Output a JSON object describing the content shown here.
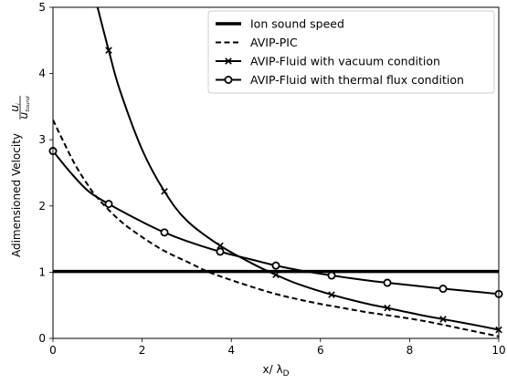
{
  "chart_data": {
    "type": "line",
    "title": "",
    "xlabel": "x/ λ",
    "xlabel_sub": "D",
    "ylabel": "Adimensioned Velocity",
    "ylabel_frac_num": "u",
    "ylabel_frac_num_sub": "i",
    "ylabel_frac_den": "u",
    "ylabel_frac_den_sub": "Sound",
    "xlim": [
      0,
      10
    ],
    "ylim": [
      0,
      5
    ],
    "xticks": [
      "0",
      "2",
      "4",
      "6",
      "8",
      "10"
    ],
    "yticks": [
      "0",
      "1",
      "2",
      "3",
      "4",
      "5"
    ],
    "grid": false,
    "legend_position": "top-right",
    "series": [
      {
        "name": "Ion sound speed",
        "style": "thick-solid",
        "x": [
          0,
          10
        ],
        "y": [
          1.01,
          1.01
        ]
      },
      {
        "name": "AVIP-PIC",
        "style": "dashed",
        "x": [
          0,
          0.25,
          0.5,
          0.75,
          1,
          1.5,
          2,
          2.5,
          3,
          3.5,
          4,
          4.5,
          5,
          5.5,
          6,
          6.5,
          7,
          7.5,
          8,
          8.5,
          9,
          9.5,
          10
        ],
        "y": [
          3.3,
          2.95,
          2.62,
          2.35,
          2.12,
          1.78,
          1.53,
          1.32,
          1.16,
          1.0,
          0.88,
          0.77,
          0.67,
          0.59,
          0.52,
          0.46,
          0.4,
          0.35,
          0.3,
          0.24,
          0.17,
          0.1,
          0.03
        ]
      },
      {
        "name": "AVIP-Fluid with vacuum condition",
        "style": "solid-x",
        "x": [
          1,
          1.25,
          1.5,
          2,
          2.5,
          3,
          3.75,
          4.5,
          5,
          5.5,
          6.25,
          7,
          7.5,
          8.2,
          8.75,
          9.4,
          10
        ],
        "y": [
          5.0,
          4.35,
          3.75,
          2.85,
          2.22,
          1.78,
          1.4,
          1.12,
          0.96,
          0.82,
          0.66,
          0.53,
          0.46,
          0.36,
          0.29,
          0.21,
          0.13
        ],
        "marker_indices": [
          1,
          4,
          6,
          8,
          10,
          12,
          14,
          16
        ]
      },
      {
        "name": "AVIP-Fluid with thermal flux condition",
        "style": "solid-o",
        "x": [
          0,
          0.4,
          0.8,
          1.25,
          2,
          2.5,
          3,
          3.75,
          4.4,
          5,
          5.6,
          6.25,
          7,
          7.5,
          8.2,
          8.75,
          9.4,
          10
        ],
        "y": [
          2.83,
          2.5,
          2.22,
          2.03,
          1.76,
          1.6,
          1.47,
          1.31,
          1.2,
          1.1,
          1.02,
          0.95,
          0.88,
          0.84,
          0.79,
          0.75,
          0.71,
          0.67
        ],
        "marker_indices": [
          0,
          3,
          5,
          7,
          9,
          11,
          13,
          15,
          17
        ]
      }
    ]
  }
}
